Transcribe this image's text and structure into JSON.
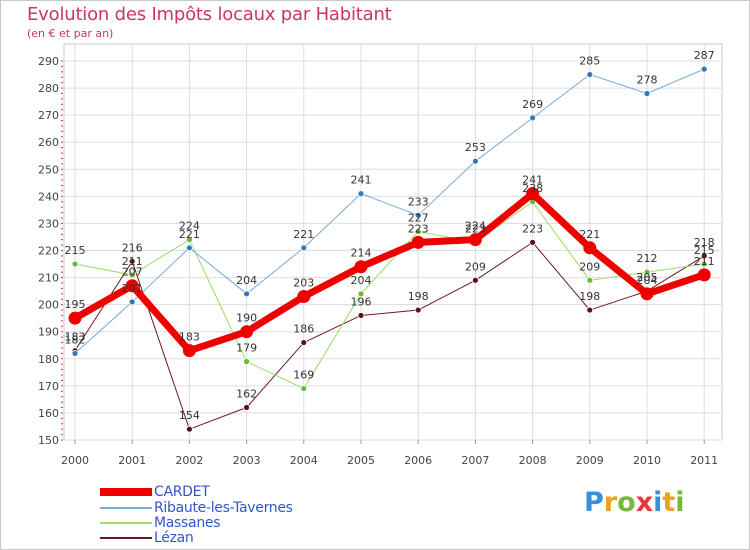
{
  "title": "Evolution des Impôts locaux par Habitant",
  "subtitle": "(en € et par an)",
  "logo": {
    "text": "Proxiti",
    "colors": [
      "#3b8fd9",
      "#e8a21f",
      "#78b83a",
      "#e63a3a",
      "#3b8fd9",
      "#e8a21f",
      "#78b83a"
    ]
  },
  "chart_data": {
    "type": "line",
    "title": "Evolution des Impôts locaux par Habitant",
    "subtitle": "(en € et par an)",
    "xlabel": "",
    "ylabel": "",
    "ylim": [
      150,
      290
    ],
    "yticks": [
      "150",
      "160",
      "170",
      "180",
      "190",
      "200",
      "210",
      "220",
      "230",
      "240",
      "250",
      "260",
      "270",
      "280",
      "290"
    ],
    "ytick_values": [
      150,
      160,
      170,
      180,
      190,
      200,
      210,
      220,
      230,
      240,
      250,
      260,
      270,
      280,
      290
    ],
    "categories": [
      "2000",
      "2001",
      "2002",
      "2003",
      "2004",
      "2005",
      "2006",
      "2007",
      "2008",
      "2009",
      "2010",
      "2011"
    ],
    "grid": true,
    "legend_position": "bottom-left",
    "series": [
      {
        "name": "Lézan",
        "color": "#6b1a22",
        "marker": "#5a1218",
        "width": 1,
        "values": [
          183,
          216,
          154,
          162,
          186,
          196,
          198,
          209,
          223,
          198,
          205,
          218
        ],
        "labels": [
          "183",
          "216",
          "154",
          "162",
          "186",
          "196",
          "198",
          "209",
          "223",
          "198",
          "205",
          "218"
        ]
      },
      {
        "name": "Massanes",
        "color": "#99dd66",
        "marker": "#66bb33",
        "width": 1,
        "values": [
          215,
          211,
          224,
          179,
          169,
          204,
          227,
          223,
          238,
          209,
          212,
          215
        ],
        "labels": [
          "215",
          "211",
          "224",
          "179",
          "169",
          "204",
          "227",
          "223",
          "238",
          "209",
          "212",
          "215"
        ]
      },
      {
        "name": "Ribaute-les-Tavernes",
        "color": "#77aadd",
        "marker": "#3377bb",
        "width": 1,
        "values": [
          182,
          201,
          221,
          204,
          221,
          241,
          233,
          253,
          269,
          285,
          278,
          287
        ],
        "labels": [
          "182",
          "201",
          "221",
          "204",
          "221",
          "241",
          "233",
          "253",
          "269",
          "285",
          "278",
          "287"
        ]
      },
      {
        "name": "CARDET",
        "color": "#ee0000",
        "marker": "#ee0000",
        "width": 7,
        "values": [
          195,
          207,
          183,
          190,
          203,
          214,
          223,
          224,
          241,
          221,
          204,
          211
        ],
        "labels": [
          "195",
          "207",
          "183",
          "190",
          "203",
          "214",
          "223",
          "224",
          "241",
          "221",
          "204",
          "211"
        ]
      }
    ],
    "legend": [
      "CARDET",
      "Ribaute-les-Tavernes",
      "Massanes",
      "Lézan"
    ]
  }
}
